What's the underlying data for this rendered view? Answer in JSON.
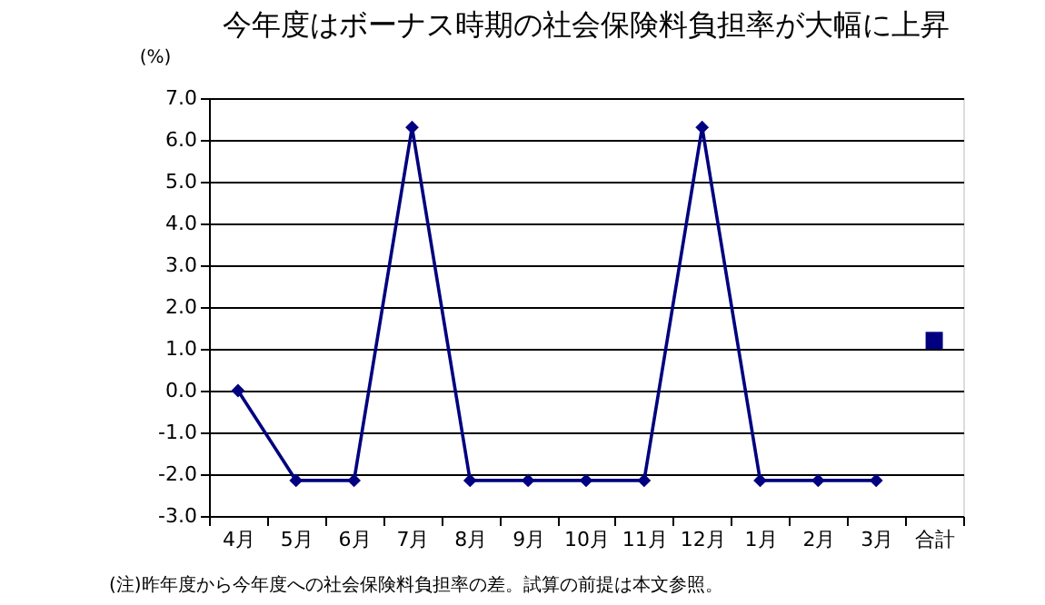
{
  "chart_data": {
    "type": "line",
    "title": "今年度はボーナス時期の社会保険料負担率が大幅に上昇",
    "ylabel": "(%)",
    "categories": [
      "4月",
      "5月",
      "6月",
      "7月",
      "8月",
      "9月",
      "10月",
      "11月",
      "12月",
      "1月",
      "2月",
      "3月",
      "合計"
    ],
    "series": [
      {
        "type": "line",
        "marker": "diamond",
        "line_style": "solid",
        "color": "#000080",
        "values": [
          0,
          -2.15,
          -2.15,
          6.3,
          -2.15,
          -2.15,
          -2.15,
          -2.15,
          6.3,
          -2.15,
          -2.15,
          -2.15,
          null
        ]
      },
      {
        "type": "scatter",
        "marker": "square",
        "color": "#000080",
        "values": [
          null,
          null,
          null,
          null,
          null,
          null,
          null,
          null,
          null,
          null,
          null,
          null,
          1.2
        ]
      }
    ],
    "ylim": [
      -3,
      7
    ],
    "yticks": [
      {
        "value": -3,
        "label": "-3.0"
      },
      {
        "value": -2,
        "label": "-2.0"
      },
      {
        "value": -1,
        "label": "-1.0"
      },
      {
        "value": 0,
        "label": "0.0"
      },
      {
        "value": 1,
        "label": "1.0"
      },
      {
        "value": 2,
        "label": "2.0"
      },
      {
        "value": 3,
        "label": "3.0"
      },
      {
        "value": 4,
        "label": "4.0"
      },
      {
        "value": 5,
        "label": "5.0"
      },
      {
        "value": 6,
        "label": "6.0"
      },
      {
        "value": 7,
        "label": "7.0"
      }
    ],
    "grid": "y",
    "annotations": [
      "(注)昨年度から今年度への社会保険料負担率の差。試算の前提は本文参照。"
    ]
  }
}
